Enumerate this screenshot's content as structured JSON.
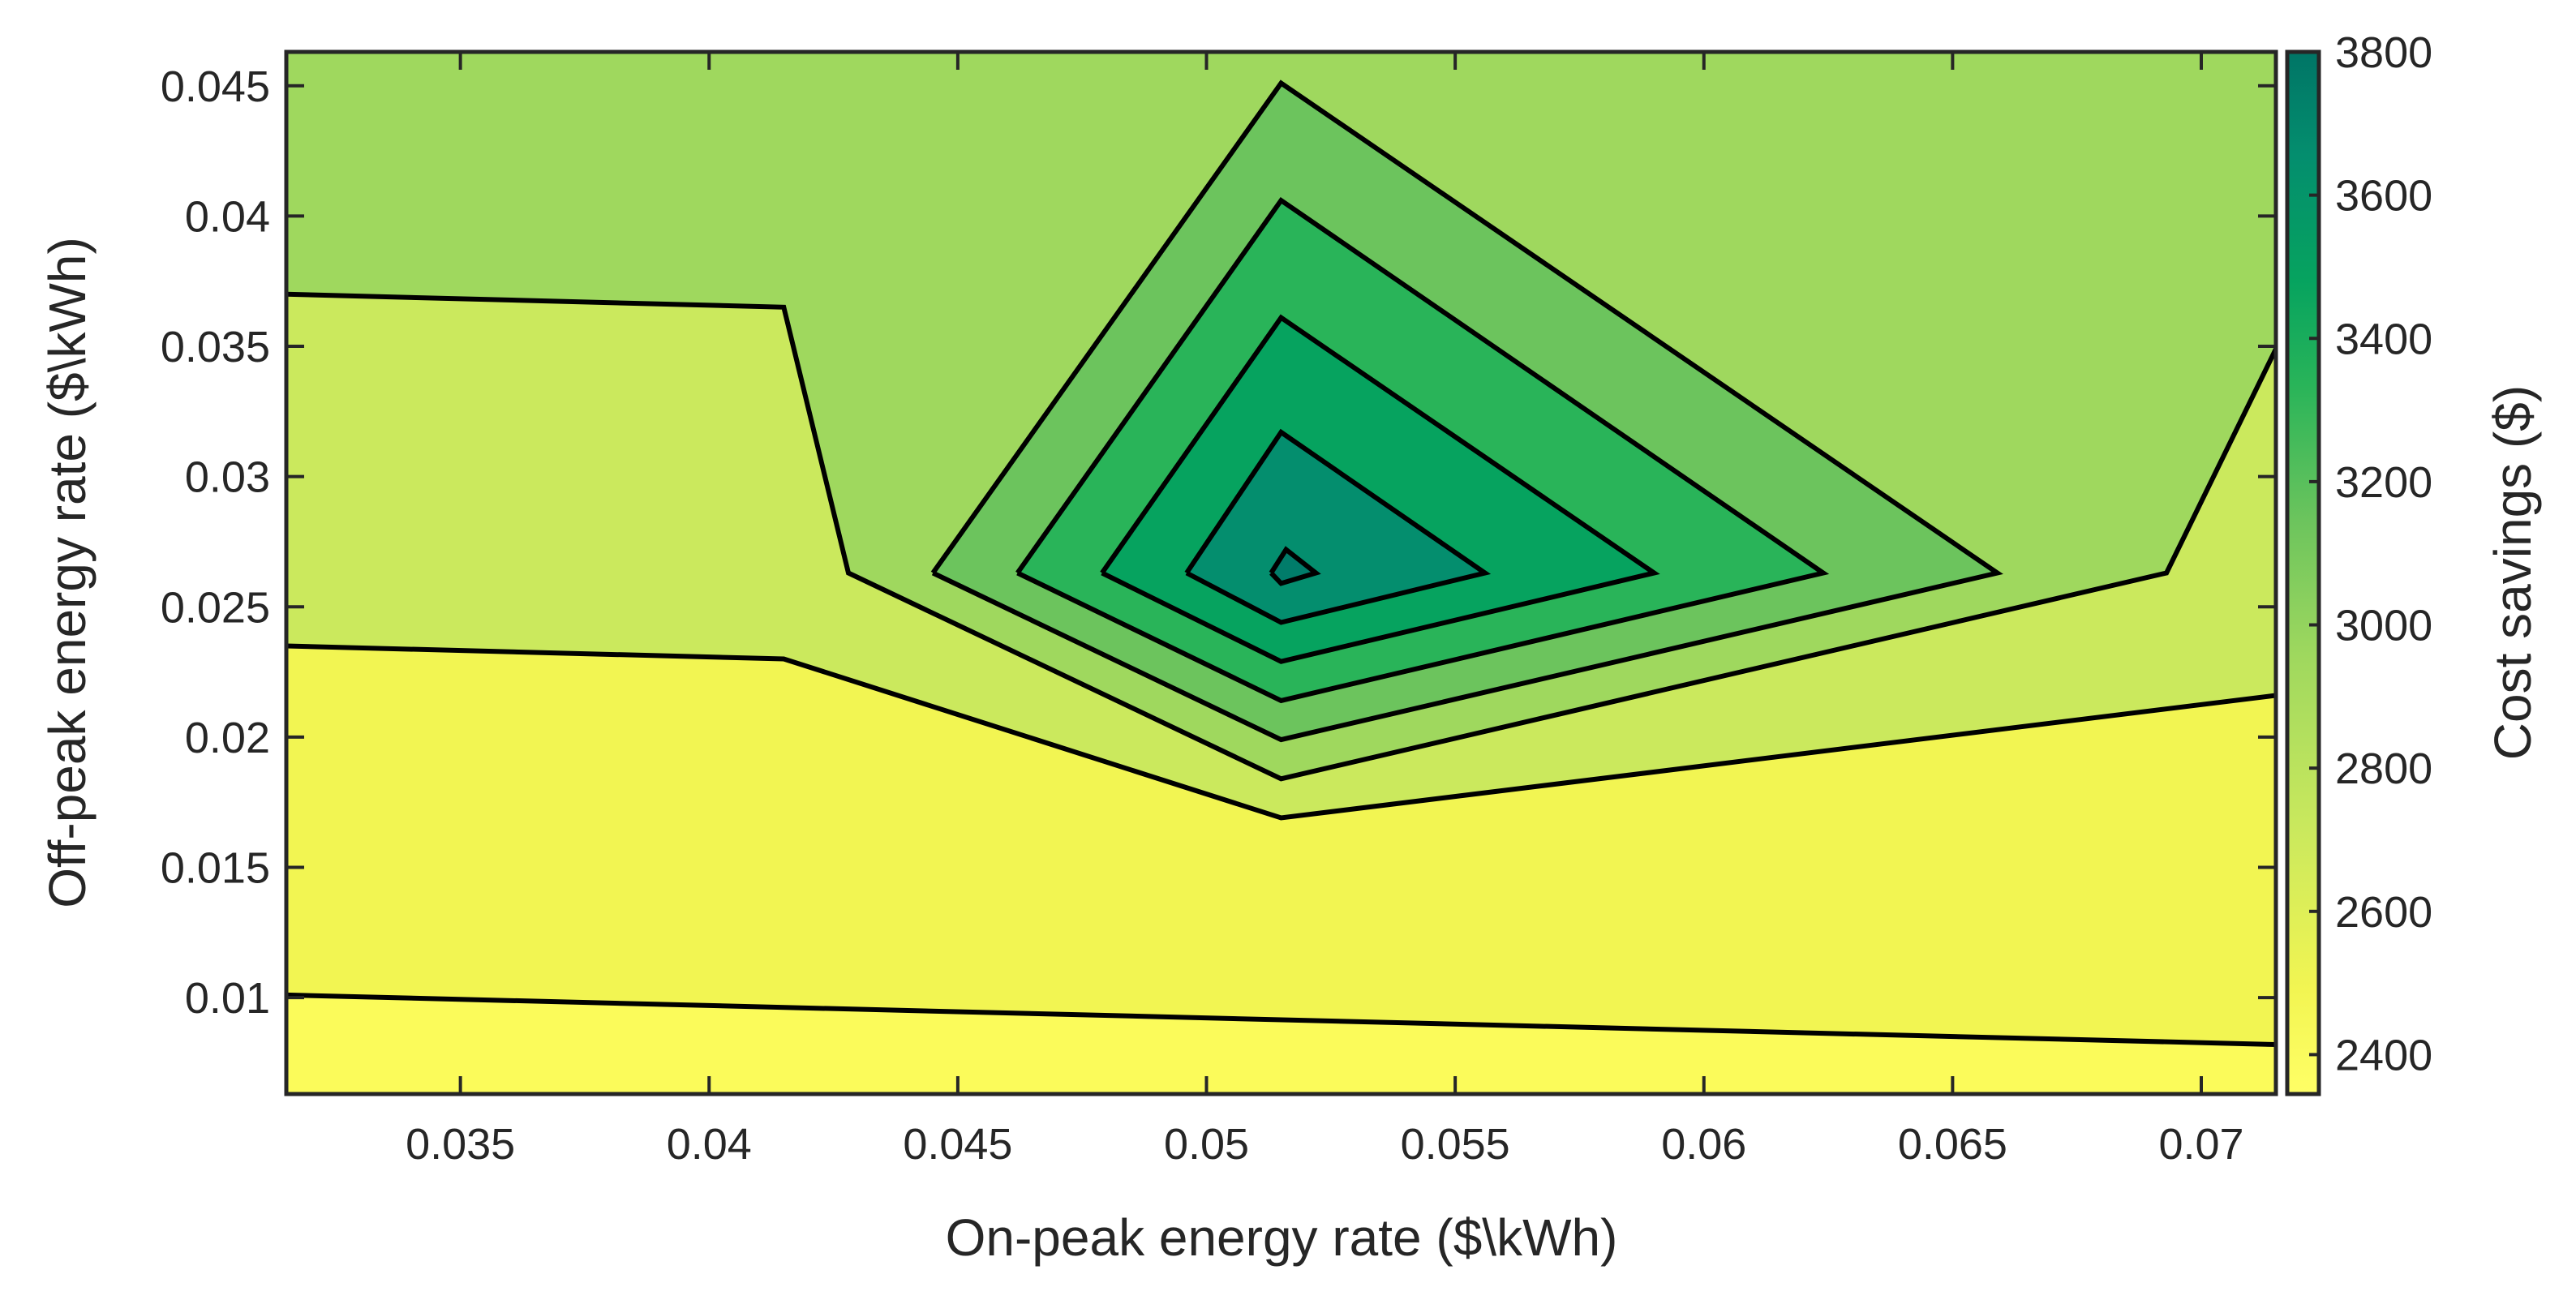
{
  "chart_data": {
    "type": "contour",
    "title": "",
    "xlabel": "On-peak energy rate ($\\kWh)",
    "ylabel": "Off-peak energy rate ($\\kWh)",
    "xlim": [
      0.0315,
      0.0715
    ],
    "ylim": [
      0.0063,
      0.0463
    ],
    "xticks": [
      0.035,
      0.04,
      0.045,
      0.05,
      0.055,
      0.06,
      0.065,
      0.07
    ],
    "xtick_labels": [
      "0.035",
      "0.04",
      "0.045",
      "0.05",
      "0.055",
      "0.06",
      "0.065",
      "0.07"
    ],
    "yticks": [
      0.01,
      0.015,
      0.02,
      0.025,
      0.03,
      0.035,
      0.04,
      0.045
    ],
    "ytick_labels": [
      "0.01",
      "0.015",
      "0.02",
      "0.025",
      "0.03",
      "0.035",
      "0.04",
      "0.045"
    ],
    "colorbar": {
      "label": "Cost savings ($)",
      "range": [
        2345,
        3800
      ],
      "ticks": [
        2400,
        2600,
        2800,
        3000,
        3200,
        3400,
        3600,
        3800
      ],
      "tick_labels": [
        "2400",
        "2600",
        "2800",
        "3000",
        "3200",
        "3400",
        "3600",
        "3800"
      ],
      "colormap": "summer-reversed (yellow to teal)"
    },
    "regions": [
      {
        "level": 2345,
        "color": "#fbfb5a",
        "boundary": [
          [
            0.0315,
            0.0063
          ],
          [
            0.0715,
            0.0063
          ],
          [
            0.0715,
            0.0463
          ],
          [
            0.0315,
            0.0463
          ]
        ]
      },
      {
        "level": 2480,
        "color": "#f2f552",
        "boundary": [
          [
            0.0315,
            0.0101
          ],
          [
            0.0715,
            0.0082
          ],
          [
            0.0715,
            0.0463
          ],
          [
            0.0315,
            0.0463
          ]
        ]
      },
      {
        "level": 2650,
        "color": "#cbe95d",
        "boundary": [
          [
            0.0315,
            0.0235
          ],
          [
            0.0415,
            0.023
          ],
          [
            0.0515,
            0.0169
          ],
          [
            0.0715,
            0.0216
          ],
          [
            0.0715,
            0.0463
          ],
          [
            0.0315,
            0.0463
          ]
        ]
      },
      {
        "level": 2820,
        "color": "#9fd85e",
        "boundary": [
          [
            0.0315,
            0.037
          ],
          [
            0.0415,
            0.0365
          ],
          [
            0.0428,
            0.0263
          ],
          [
            0.0515,
            0.0184
          ],
          [
            0.0693,
            0.0263
          ],
          [
            0.0715,
            0.0349
          ],
          [
            0.0715,
            0.0463
          ],
          [
            0.0315,
            0.0463
          ]
        ]
      },
      {
        "level": 2990,
        "color": "#6cc45d",
        "boundary": [
          [
            0.0445,
            0.0263
          ],
          [
            0.0515,
            0.0451
          ],
          [
            0.0659,
            0.0263
          ],
          [
            0.0515,
            0.0199
          ]
        ]
      },
      {
        "level": 3150,
        "color": "#29b459",
        "boundary": [
          [
            0.0462,
            0.0263
          ],
          [
            0.0515,
            0.0406
          ],
          [
            0.0624,
            0.0263
          ],
          [
            0.0515,
            0.0214
          ]
        ]
      },
      {
        "level": 3300,
        "color": "#06a35f",
        "boundary": [
          [
            0.0479,
            0.0263
          ],
          [
            0.0515,
            0.0361
          ],
          [
            0.059,
            0.0263
          ],
          [
            0.0515,
            0.0229
          ]
        ]
      },
      {
        "level": 3470,
        "color": "#048e6e",
        "boundary": [
          [
            0.0496,
            0.0263
          ],
          [
            0.0515,
            0.0317
          ],
          [
            0.0556,
            0.0263
          ],
          [
            0.0515,
            0.0244
          ]
        ]
      },
      {
        "level": 3620,
        "color": "#017c6a",
        "boundary": [
          [
            0.0513,
            0.0263
          ],
          [
            0.0516,
            0.0272
          ],
          [
            0.0522,
            0.0263
          ],
          [
            0.0515,
            0.0259
          ]
        ]
      }
    ],
    "contour_lines": [
      [
        [
          0.0315,
          0.0101
        ],
        [
          0.0715,
          0.0082
        ]
      ],
      [
        [
          0.0315,
          0.0235
        ],
        [
          0.0415,
          0.023
        ],
        [
          0.0515,
          0.0169
        ],
        [
          0.0715,
          0.0216
        ]
      ],
      [
        [
          0.0315,
          0.037
        ],
        [
          0.0415,
          0.0365
        ],
        [
          0.0428,
          0.0263
        ],
        [
          0.0515,
          0.0184
        ],
        [
          0.0693,
          0.0263
        ],
        [
          0.0715,
          0.0349
        ]
      ],
      [
        [
          0.0445,
          0.0263
        ],
        [
          0.0515,
          0.0451
        ],
        [
          0.0659,
          0.0263
        ],
        [
          0.0515,
          0.0199
        ],
        [
          0.0445,
          0.0263
        ]
      ],
      [
        [
          0.0462,
          0.0263
        ],
        [
          0.0515,
          0.0406
        ],
        [
          0.0624,
          0.0263
        ],
        [
          0.0515,
          0.0214
        ],
        [
          0.0462,
          0.0263
        ]
      ],
      [
        [
          0.0479,
          0.0263
        ],
        [
          0.0515,
          0.0361
        ],
        [
          0.059,
          0.0263
        ],
        [
          0.0515,
          0.0229
        ],
        [
          0.0479,
          0.0263
        ]
      ],
      [
        [
          0.0496,
          0.0263
        ],
        [
          0.0515,
          0.0317
        ],
        [
          0.0556,
          0.0263
        ],
        [
          0.0515,
          0.0244
        ],
        [
          0.0496,
          0.0263
        ]
      ],
      [
        [
          0.0513,
          0.0263
        ],
        [
          0.0516,
          0.0272
        ],
        [
          0.0522,
          0.0263
        ],
        [
          0.0515,
          0.0259
        ],
        [
          0.0513,
          0.0263
        ]
      ]
    ]
  }
}
